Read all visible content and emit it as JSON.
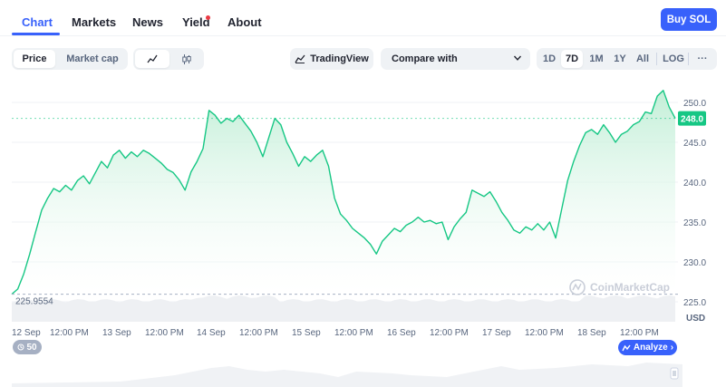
{
  "nav": {
    "tabs": [
      {
        "label": "Chart",
        "active": true
      },
      {
        "label": "Markets"
      },
      {
        "label": "News"
      },
      {
        "label": "Yield",
        "has_dot": true
      },
      {
        "label": "About"
      }
    ],
    "buy_button": "Buy SOL"
  },
  "toolbar": {
    "price_tab": "Price",
    "market_cap_tab": "Market cap",
    "line_icon": "line-chart-icon",
    "candle_icon": "candlestick-icon",
    "tradingview": "TradingView",
    "compare": "Compare with",
    "ranges": [
      "1D",
      "7D",
      "1M",
      "1Y",
      "All"
    ],
    "selected_range": "7D",
    "log": "LOG",
    "more": "···"
  },
  "colors": {
    "accent": "#3861fb",
    "line": "#16c784",
    "area_top": "#c9f0dc",
    "volume": "#eef0f3",
    "text_muted": "#58667e"
  },
  "chart_data": {
    "type": "area",
    "ylabel": "USD",
    "y_ticks": [
      "250.0",
      "245.0",
      "240.0",
      "235.0",
      "230.0",
      "225.0"
    ],
    "ylim": [
      222.5,
      252.5
    ],
    "x_ticks": [
      "12 Sep",
      "12:00 PM",
      "13 Sep",
      "12:00 PM",
      "14 Sep",
      "12:00 PM",
      "15 Sep",
      "12:00 PM",
      "16 Sep",
      "12:00 PM",
      "17 Sep",
      "12:00 PM",
      "18 Sep",
      "12:00 PM"
    ],
    "current_price": "248.0",
    "min_label": "225.9554",
    "min_value": 225.9554,
    "watermark": "CoinMarketCap",
    "grid": true,
    "series": [
      {
        "values": [
          225.96,
          226.6,
          228.5,
          231.0,
          233.8,
          236.5,
          238.0,
          239.2,
          238.8,
          239.6,
          239.0,
          240.2,
          240.8,
          239.8,
          241.2,
          242.6,
          241.8,
          243.4,
          244.0,
          243.0,
          243.8,
          243.2,
          244.0,
          243.6,
          243.0,
          242.4,
          241.6,
          241.2,
          240.3,
          239.0,
          241.3,
          242.6,
          244.2,
          249.0,
          248.4,
          247.4,
          248.0,
          247.6,
          248.4,
          247.4,
          246.4,
          245.0,
          243.2,
          245.6,
          248.0,
          247.2,
          245.0,
          243.6,
          242.0,
          243.2,
          242.6,
          243.4,
          244.0,
          242.0,
          238.0,
          236.0,
          235.2,
          234.2,
          233.6,
          233.0,
          232.2,
          231.0,
          232.6,
          233.4,
          234.2,
          233.8,
          234.6,
          235.0,
          235.6,
          235.0,
          235.2,
          234.8,
          235.0,
          232.8,
          234.4,
          235.4,
          236.2,
          239.0,
          238.6,
          238.2,
          238.8,
          237.6,
          236.2,
          235.2,
          234.0,
          233.6,
          234.4,
          234.0,
          234.8,
          234.0,
          235.0,
          233.0,
          236.6,
          240.2,
          242.6,
          244.6,
          246.2,
          246.6,
          246.0,
          247.2,
          246.2,
          245.0,
          246.0,
          246.4,
          247.2,
          247.6,
          248.8,
          248.6,
          250.8,
          251.5,
          249.4,
          248.0
        ]
      }
    ]
  },
  "volume_badge": "50",
  "analyze_button": "Analyze"
}
